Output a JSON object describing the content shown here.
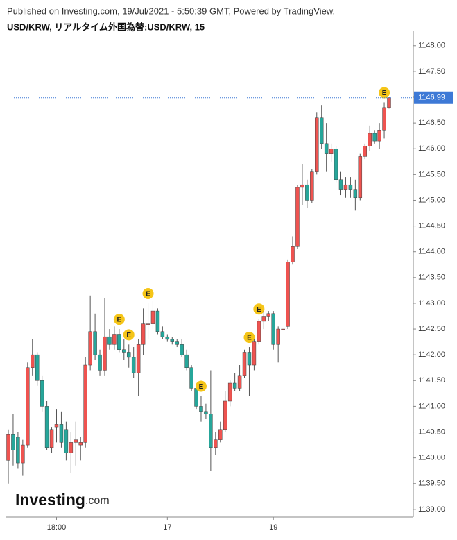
{
  "header": {
    "published": "Published on Investing.com, 19/Jul/2021 - 5:50:39 GMT, Powered by TradingView.",
    "symbol": "USD/KRW, リアルタイム外国為替:USD/KRW, 15"
  },
  "logo": {
    "brand": "Investing",
    "suffix": ".com"
  },
  "chart_data": {
    "type": "candlestick",
    "categories": [
      null,
      null,
      null,
      null,
      null,
      null,
      null,
      null,
      null,
      null,
      "18:00",
      null,
      null,
      null,
      null,
      null,
      null,
      null,
      null,
      null,
      null,
      null,
      null,
      null,
      null,
      null,
      null,
      null,
      null,
      null,
      null,
      null,
      null,
      "17",
      null,
      null,
      null,
      null,
      null,
      null,
      null,
      null,
      null,
      null,
      null,
      null,
      null,
      null,
      null,
      null,
      null,
      null,
      null,
      null,
      null,
      "19",
      null,
      null,
      null,
      null,
      null,
      null,
      null,
      null,
      null,
      null,
      null,
      null,
      null,
      null,
      null,
      null,
      null,
      null,
      null,
      null,
      null,
      null,
      null,
      null
    ],
    "open": [
      1139.95,
      1140.45,
      1140.4,
      1139.9,
      1140.25,
      1141.75,
      1142.0,
      1141.5,
      1141.0,
      1140.2,
      1140.6,
      1140.65,
      1140.55,
      1140.1,
      1140.3,
      1140.25,
      1140.3,
      1141.8,
      1142.45,
      1142.0,
      1141.7,
      1142.35,
      1142.2,
      1142.4,
      1142.1,
      1142.05,
      1141.95,
      1141.65,
      1142.2,
      1142.6,
      1142.6,
      1142.85,
      1142.45,
      1142.35,
      1142.3,
      1142.25,
      1142.2,
      1142.0,
      1141.75,
      1141.35,
      1141.0,
      1140.9,
      1140.85,
      1140.2,
      1140.35,
      1140.55,
      1141.1,
      1141.45,
      1141.35,
      1141.6,
      1142.05,
      1141.8,
      1142.25,
      1142.65,
      1142.75,
      1142.8,
      1142.2,
      1142.5,
      1142.55,
      1143.8,
      1144.1,
      1145.25,
      1145.3,
      1145.0,
      1145.55,
      1146.6,
      1146.1,
      1145.9,
      1146.0,
      1145.4,
      1145.2,
      1145.3,
      1145.2,
      1145.05,
      1145.85,
      1146.05,
      1146.3,
      1146.15,
      1146.35,
      1146.8
    ],
    "high": [
      1140.55,
      1140.85,
      1140.5,
      1140.35,
      1141.85,
      1142.3,
      1142.05,
      1141.6,
      1141.1,
      1140.6,
      1140.95,
      1140.9,
      1140.7,
      1140.5,
      1140.7,
      1140.4,
      1141.95,
      1143.15,
      1142.8,
      1142.1,
      1143.1,
      1142.5,
      1142.55,
      1142.5,
      1142.3,
      1142.2,
      1142.15,
      1142.3,
      1142.9,
      1143.0,
      1143.05,
      1142.9,
      1142.55,
      1142.4,
      1142.35,
      1142.3,
      1142.3,
      1142.1,
      1141.8,
      1141.4,
      1141.2,
      1141.05,
      1141.7,
      1140.5,
      1140.7,
      1141.3,
      1141.5,
      1141.65,
      1141.8,
      1142.1,
      1142.15,
      1142.3,
      1142.7,
      1142.85,
      1142.85,
      1142.85,
      1142.55,
      1142.5,
      1143.85,
      1144.3,
      1145.3,
      1145.7,
      1145.4,
      1145.6,
      1146.7,
      1146.85,
      1146.5,
      1146.1,
      1146.05,
      1145.55,
      1145.45,
      1145.45,
      1145.4,
      1145.9,
      1146.1,
      1146.45,
      1146.35,
      1146.5,
      1146.9,
      1147.0
    ],
    "low": [
      1139.5,
      1139.85,
      1139.8,
      1139.65,
      1140.2,
      1141.6,
      1141.4,
      1140.9,
      1140.15,
      1140.1,
      1140.3,
      1140.2,
      1139.95,
      1139.7,
      1139.85,
      1139.95,
      1140.2,
      1141.7,
      1141.9,
      1141.6,
      1141.6,
      1142.1,
      1142.1,
      1142.05,
      1141.9,
      1141.75,
      1141.55,
      1141.2,
      1142.0,
      1142.3,
      1142.5,
      1142.4,
      1142.3,
      1142.25,
      1142.2,
      1142.15,
      1141.95,
      1141.7,
      1141.3,
      1140.95,
      1140.7,
      1140.75,
      1139.75,
      1140.05,
      1140.3,
      1140.5,
      1141.0,
      1141.3,
      1141.3,
      1141.55,
      1141.2,
      1141.7,
      1142.2,
      1142.5,
      1142.65,
      1142.1,
      1141.85,
      1142.5,
      1142.5,
      1143.75,
      1144.05,
      1144.9,
      1144.85,
      1144.95,
      1145.5,
      1146.0,
      1145.55,
      1145.75,
      1145.35,
      1145.1,
      1145.05,
      1145.05,
      1144.8,
      1145.0,
      1145.8,
      1145.95,
      1146.1,
      1146.0,
      1146.2,
      1146.78
    ],
    "close": [
      1140.45,
      1140.15,
      1139.9,
      1140.25,
      1141.75,
      1142.0,
      1141.5,
      1141.0,
      1140.2,
      1140.55,
      1140.65,
      1140.3,
      1140.1,
      1140.3,
      1140.35,
      1140.3,
      1141.8,
      1142.45,
      1142.0,
      1141.7,
      1142.35,
      1142.2,
      1142.4,
      1142.1,
      1142.05,
      1141.95,
      1141.65,
      1142.2,
      1142.6,
      1142.6,
      1142.85,
      1142.45,
      1142.35,
      1142.3,
      1142.25,
      1142.2,
      1142.0,
      1141.75,
      1141.35,
      1141.0,
      1140.9,
      1140.85,
      1140.2,
      1140.35,
      1140.55,
      1141.1,
      1141.45,
      1141.35,
      1141.6,
      1142.05,
      1141.8,
      1142.25,
      1142.65,
      1142.75,
      1142.8,
      1142.2,
      1142.5,
      1142.5,
      1143.8,
      1144.1,
      1145.25,
      1145.3,
      1145.0,
      1145.55,
      1146.6,
      1146.1,
      1145.9,
      1146.0,
      1145.4,
      1145.2,
      1145.3,
      1145.2,
      1145.05,
      1145.85,
      1146.05,
      1146.3,
      1146.15,
      1146.35,
      1146.8,
      1146.99
    ],
    "markers": [
      null,
      null,
      null,
      null,
      null,
      null,
      null,
      null,
      null,
      null,
      null,
      null,
      null,
      null,
      null,
      null,
      null,
      null,
      null,
      null,
      null,
      null,
      null,
      "E",
      null,
      "E",
      null,
      null,
      null,
      "E",
      null,
      null,
      null,
      null,
      null,
      null,
      null,
      null,
      null,
      null,
      "E",
      null,
      null,
      null,
      null,
      null,
      null,
      null,
      null,
      null,
      "E",
      null,
      "E",
      null,
      null,
      null,
      null,
      null,
      null,
      null,
      null,
      null,
      null,
      null,
      null,
      null,
      null,
      null,
      null,
      null,
      null,
      null,
      null,
      null,
      null,
      null,
      null,
      null,
      "E",
      null
    ],
    "up_color": "#ef5350",
    "down_color": "#26a69a",
    "marker_color": "#f5c518",
    "last_price": 1146.99,
    "last_price_color": "#3d79d6",
    "ylim": [
      1138.85,
      1148.28
    ],
    "yticks": [
      {
        "value": 1139,
        "label": "1139.00"
      },
      {
        "value": 1139.5,
        "label": "1139.50"
      },
      {
        "value": 1140,
        "label": "1140.00"
      },
      {
        "value": 1140.5,
        "label": "1140.50"
      },
      {
        "value": 1141,
        "label": "1141.00"
      },
      {
        "value": 1141.5,
        "label": "1141.50"
      },
      {
        "value": 1142,
        "label": "1142.00"
      },
      {
        "value": 1142.5,
        "label": "1142.50"
      },
      {
        "value": 1143,
        "label": "1143.00"
      },
      {
        "value": 1143.5,
        "label": "1143.50"
      },
      {
        "value": 1144,
        "label": "1144.00"
      },
      {
        "value": 1144.5,
        "label": "1144.50"
      },
      {
        "value": 1145,
        "label": "1145.00"
      },
      {
        "value": 1145.5,
        "label": "1145.50"
      },
      {
        "value": 1146,
        "label": "1146.00"
      },
      {
        "value": 1146.5,
        "label": "1146.50"
      },
      {
        "value": 1147,
        "label": "1147.00"
      },
      {
        "value": 1147.5,
        "label": "1147.50"
      },
      {
        "value": 1148,
        "label": "1148.00"
      }
    ]
  }
}
